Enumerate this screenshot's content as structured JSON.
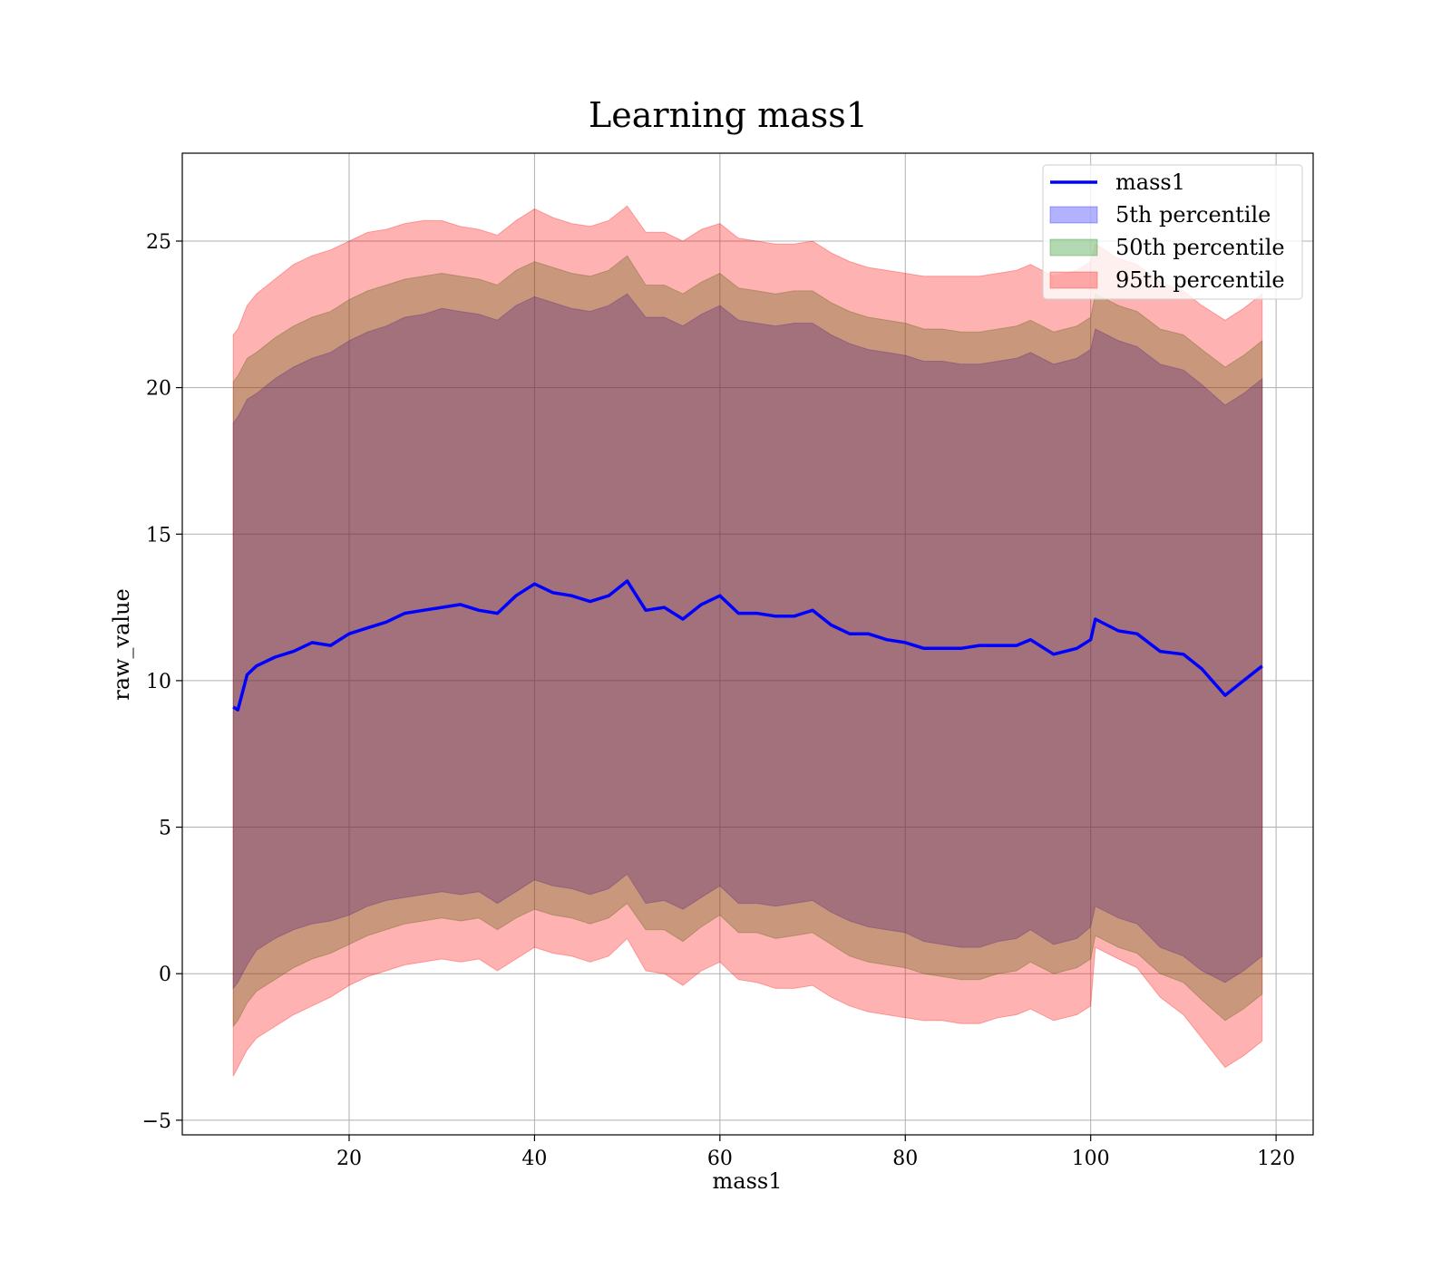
{
  "chart_data": {
    "type": "area",
    "title": "Learning mass1",
    "xlabel": "mass1",
    "ylabel": "raw_value",
    "xlim": [
      2,
      124
    ],
    "ylim": [
      -5.5,
      28
    ],
    "xticks": [
      20,
      40,
      60,
      80,
      100,
      120
    ],
    "yticks": [
      -5,
      0,
      5,
      10,
      15,
      20,
      25
    ],
    "xtick_labels": [
      "20",
      "40",
      "60",
      "80",
      "100",
      "120"
    ],
    "ytick_labels": [
      "−5",
      "0",
      "5",
      "10",
      "15",
      "20",
      "25"
    ],
    "grid": true,
    "legend_position": "top-right",
    "x": [
      7.5,
      8,
      9,
      10,
      12,
      14,
      16,
      18,
      20,
      22,
      24,
      26,
      28,
      30,
      32,
      34,
      36,
      38,
      40,
      42,
      44,
      46,
      48,
      50,
      52,
      54,
      56,
      58,
      60,
      62,
      64,
      66,
      68,
      70,
      72,
      74,
      76,
      78,
      80,
      82,
      84,
      86,
      88,
      90,
      92,
      93.5,
      96,
      98.5,
      100,
      100.5,
      103,
      105,
      107.5,
      110,
      112,
      114.5,
      116.5,
      118.5
    ],
    "series": [
      {
        "name": "mass1",
        "kind": "line",
        "color": "#0000ff",
        "values": [
          9.1,
          9.0,
          10.2,
          10.5,
          10.8,
          11.0,
          11.3,
          11.2,
          11.6,
          11.8,
          12.0,
          12.3,
          12.4,
          12.5,
          12.6,
          12.4,
          12.3,
          12.9,
          13.3,
          13.0,
          12.9,
          12.7,
          12.9,
          13.4,
          12.4,
          12.5,
          12.1,
          12.6,
          12.9,
          12.3,
          12.3,
          12.2,
          12.2,
          12.4,
          11.9,
          11.6,
          11.6,
          11.4,
          11.3,
          11.1,
          11.1,
          11.1,
          11.2,
          11.2,
          11.2,
          11.4,
          10.9,
          11.1,
          11.4,
          12.1,
          11.7,
          11.6,
          11.0,
          10.9,
          10.4,
          9.5,
          10.0,
          10.5
        ]
      },
      {
        "name": "5th percentile",
        "kind": "band",
        "color": "#0000ff",
        "lower": [
          -0.5,
          -0.3,
          0.3,
          0.8,
          1.2,
          1.5,
          1.7,
          1.8,
          2.0,
          2.3,
          2.5,
          2.6,
          2.7,
          2.8,
          2.7,
          2.8,
          2.4,
          2.8,
          3.2,
          3.0,
          2.9,
          2.7,
          2.9,
          3.4,
          2.4,
          2.5,
          2.2,
          2.6,
          3.0,
          2.4,
          2.4,
          2.3,
          2.4,
          2.5,
          2.1,
          1.8,
          1.6,
          1.5,
          1.4,
          1.1,
          1.0,
          0.9,
          0.9,
          1.1,
          1.2,
          1.5,
          1.0,
          1.2,
          1.6,
          2.3,
          1.9,
          1.7,
          0.9,
          0.6,
          0.1,
          -0.3,
          0.1,
          0.6
        ],
        "upper": [
          18.8,
          19.0,
          19.6,
          19.8,
          20.3,
          20.7,
          21.0,
          21.2,
          21.6,
          21.9,
          22.1,
          22.4,
          22.5,
          22.7,
          22.6,
          22.5,
          22.3,
          22.8,
          23.1,
          22.9,
          22.7,
          22.6,
          22.8,
          23.2,
          22.4,
          22.4,
          22.1,
          22.5,
          22.8,
          22.3,
          22.2,
          22.1,
          22.2,
          22.2,
          21.8,
          21.5,
          21.3,
          21.2,
          21.1,
          20.9,
          20.9,
          20.8,
          20.8,
          20.9,
          21.0,
          21.2,
          20.8,
          21.0,
          21.3,
          22.0,
          21.6,
          21.4,
          20.8,
          20.6,
          20.1,
          19.4,
          19.8,
          20.3
        ]
      },
      {
        "name": "50th percentile",
        "kind": "band",
        "color": "#008000",
        "lower": [
          -1.8,
          -1.6,
          -1.0,
          -0.6,
          -0.2,
          0.2,
          0.5,
          0.7,
          1.0,
          1.3,
          1.5,
          1.7,
          1.8,
          1.9,
          1.8,
          1.9,
          1.5,
          1.9,
          2.2,
          2.0,
          1.9,
          1.7,
          1.9,
          2.4,
          1.5,
          1.5,
          1.1,
          1.6,
          2.0,
          1.4,
          1.4,
          1.2,
          1.3,
          1.4,
          1.0,
          0.6,
          0.4,
          0.3,
          0.2,
          0.0,
          -0.1,
          -0.2,
          -0.2,
          0.0,
          0.1,
          0.4,
          0.0,
          0.2,
          0.5,
          1.3,
          0.9,
          0.7,
          0.0,
          -0.3,
          -0.9,
          -1.6,
          -1.2,
          -0.7
        ],
        "upper": [
          20.2,
          20.4,
          21.0,
          21.2,
          21.7,
          22.1,
          22.4,
          22.6,
          23.0,
          23.3,
          23.5,
          23.7,
          23.8,
          23.9,
          23.8,
          23.7,
          23.5,
          24.0,
          24.3,
          24.1,
          23.9,
          23.8,
          24.0,
          24.5,
          23.5,
          23.5,
          23.2,
          23.6,
          23.9,
          23.4,
          23.3,
          23.2,
          23.3,
          23.3,
          22.9,
          22.6,
          22.4,
          22.3,
          22.2,
          22.0,
          22.0,
          21.9,
          21.9,
          22.0,
          22.1,
          22.3,
          21.9,
          22.1,
          22.4,
          23.2,
          22.8,
          22.6,
          22.0,
          21.8,
          21.3,
          20.7,
          21.1,
          21.6
        ]
      },
      {
        "name": "95th percentile",
        "kind": "band",
        "color": "#ff0000",
        "lower": [
          -3.5,
          -3.2,
          -2.6,
          -2.2,
          -1.8,
          -1.4,
          -1.1,
          -0.8,
          -0.4,
          -0.1,
          0.1,
          0.3,
          0.4,
          0.5,
          0.4,
          0.5,
          0.1,
          0.5,
          0.9,
          0.7,
          0.6,
          0.4,
          0.6,
          1.2,
          0.1,
          0.0,
          -0.4,
          0.1,
          0.4,
          -0.2,
          -0.3,
          -0.5,
          -0.5,
          -0.4,
          -0.8,
          -1.1,
          -1.3,
          -1.4,
          -1.5,
          -1.6,
          -1.6,
          -1.7,
          -1.7,
          -1.5,
          -1.4,
          -1.2,
          -1.6,
          -1.4,
          -1.1,
          0.9,
          0.5,
          0.2,
          -0.8,
          -1.4,
          -2.2,
          -3.2,
          -2.8,
          -2.3
        ],
        "upper": [
          21.8,
          22.0,
          22.8,
          23.2,
          23.7,
          24.2,
          24.5,
          24.7,
          25.0,
          25.3,
          25.4,
          25.6,
          25.7,
          25.7,
          25.5,
          25.4,
          25.2,
          25.7,
          26.1,
          25.8,
          25.6,
          25.5,
          25.7,
          26.2,
          25.3,
          25.3,
          25.0,
          25.4,
          25.6,
          25.1,
          25.0,
          24.9,
          24.9,
          25.0,
          24.6,
          24.3,
          24.1,
          24.0,
          23.9,
          23.8,
          23.8,
          23.8,
          23.8,
          23.9,
          24.0,
          24.2,
          23.8,
          24.0,
          24.3,
          24.9,
          24.4,
          24.2,
          23.6,
          23.3,
          22.8,
          22.3,
          22.7,
          23.2
        ]
      }
    ]
  }
}
